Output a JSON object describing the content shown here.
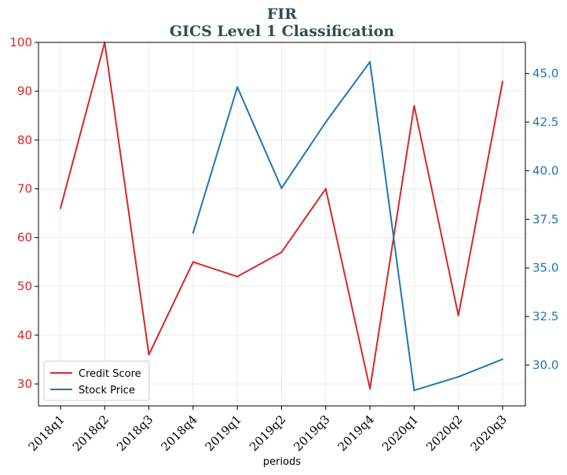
{
  "chart_data": {
    "type": "line",
    "title_line1": "FIR",
    "title_line2": "GICS Level 1 Classification",
    "xlabel": "periods",
    "categories": [
      "2018q1",
      "2018q2",
      "2018q3",
      "2018q4",
      "2019q1",
      "2019q2",
      "2019q3",
      "2019q4",
      "2020q1",
      "2020q2",
      "2020q3"
    ],
    "series": [
      {
        "name": "Credit Score",
        "axis": "left",
        "color": "#d62728",
        "values": [
          66,
          100,
          36,
          55,
          52,
          57,
          70,
          29,
          87,
          44,
          92
        ]
      },
      {
        "name": "Stock Price",
        "axis": "right",
        "color": "#1f77b4",
        "values": [
          null,
          null,
          null,
          36.8,
          44.3,
          39.1,
          42.5,
          45.6,
          28.7,
          29.4,
          30.3
        ]
      }
    ],
    "y_left": {
      "ylim": [
        25.5,
        100
      ],
      "ticks": [
        30,
        40,
        50,
        60,
        70,
        80,
        90,
        100
      ],
      "tick_labels": [
        "30",
        "40",
        "50",
        "60",
        "70",
        "80",
        "90",
        "100"
      ],
      "color": "#d62728"
    },
    "y_right": {
      "ylim": [
        27.9,
        46.6
      ],
      "ticks": [
        30.0,
        32.5,
        35.0,
        37.5,
        40.0,
        42.5,
        45.0
      ],
      "tick_labels": [
        "30.0",
        "32.5",
        "35.0",
        "37.5",
        "40.0",
        "42.5",
        "45.0"
      ],
      "color": "#1f77b4"
    },
    "grid": true,
    "legend": "lower-left"
  }
}
